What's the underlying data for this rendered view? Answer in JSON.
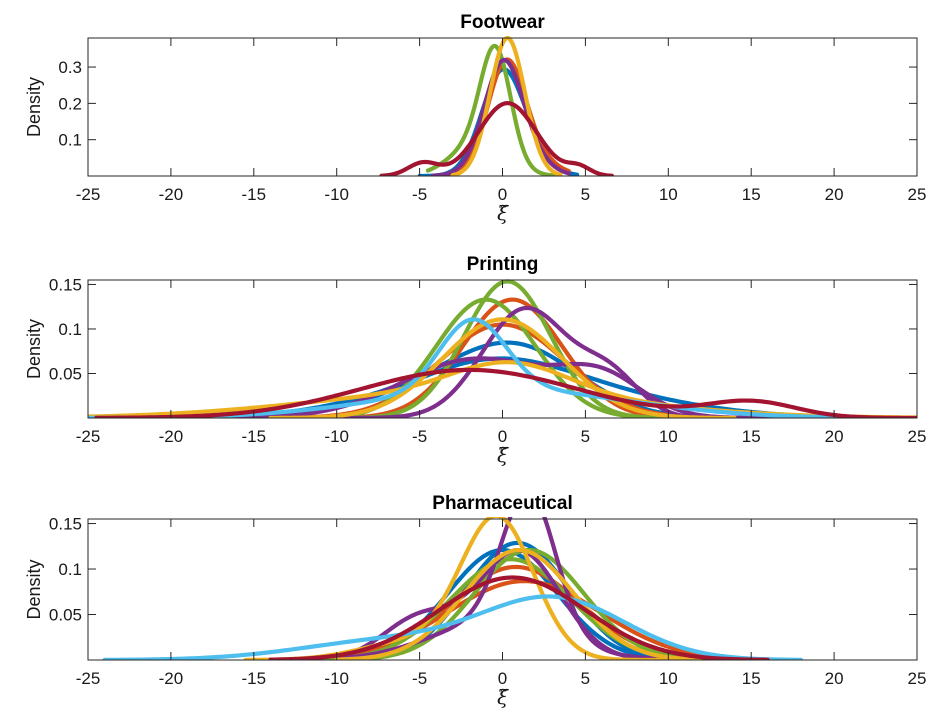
{
  "chart_data": [
    {
      "type": "line",
      "title": "Footwear",
      "xlabel": "ξ̃",
      "ylabel": "Density",
      "xlim": [
        -25,
        25
      ],
      "ylim": [
        0,
        0.38
      ],
      "xticks": [
        "-25",
        "-20",
        "-15",
        "-10",
        "-5",
        "0",
        "5",
        "10",
        "15",
        "20",
        "25"
      ],
      "yticks": [
        {
          "v": 0.1,
          "label": "0.1"
        },
        {
          "v": 0.2,
          "label": "0.2"
        },
        {
          "v": 0.3,
          "label": "0.3"
        }
      ],
      "series": [
        {
          "color": "#0072BD",
          "comps": [
            [
              0.6,
              -0.2,
              1.2
            ],
            [
              0.4,
              0.8,
              1.4
            ]
          ],
          "range": [
            -5,
            4.5
          ]
        },
        {
          "color": "#D95319",
          "comps": [
            [
              0.7,
              0.2,
              1.1
            ],
            [
              0.3,
              1.0,
              1.6
            ]
          ],
          "range": [
            -4,
            4
          ]
        },
        {
          "color": "#77AC30",
          "comps": [
            [
              0.65,
              -0.4,
              0.9
            ],
            [
              0.35,
              -1.5,
              1.6
            ]
          ],
          "range": [
            -4.5,
            3.5
          ]
        },
        {
          "color": "#7E2F8E",
          "comps": [
            [
              0.6,
              0.0,
              1.1
            ],
            [
              0.4,
              0.5,
              1.5
            ]
          ],
          "range": [
            -4.2,
            4
          ]
        },
        {
          "color": "#EDB120",
          "comps": [
            [
              1.0,
              0.3,
              1.05
            ]
          ],
          "range": [
            -3,
            3.5
          ]
        },
        {
          "color": "#A2142F",
          "comps": [
            [
              0.88,
              0.3,
              1.75
            ],
            [
              0.08,
              -4.8,
              0.9
            ],
            [
              0.04,
              4.6,
              0.7
            ]
          ],
          "range": [
            -7.3,
            6.6
          ]
        }
      ]
    },
    {
      "type": "line",
      "title": "Printing",
      "xlabel": "ξ̃",
      "ylabel": "Density",
      "xlim": [
        -25,
        25
      ],
      "ylim": [
        0,
        0.155
      ],
      "xticks": [
        "-25",
        "-20",
        "-15",
        "-10",
        "-5",
        "0",
        "5",
        "10",
        "15",
        "20",
        "25"
      ],
      "yticks": [
        {
          "v": 0.05,
          "label": "0.05"
        },
        {
          "v": 0.1,
          "label": "0.1"
        },
        {
          "v": 0.15,
          "label": "0.15"
        }
      ],
      "series": [
        {
          "color": "#0072BD",
          "comps": [
            [
              0.65,
              1.0,
              3.8
            ],
            [
              0.35,
              -4.5,
              5.0
            ]
          ],
          "range": [
            -20,
            22
          ]
        },
        {
          "color": "#0072BD",
          "comps": [
            [
              0.7,
              -1.0,
              5.0
            ],
            [
              0.3,
              6.0,
              6.0
            ]
          ],
          "range": [
            -21,
            24
          ]
        },
        {
          "color": "#D95319",
          "comps": [
            [
              1.0,
              0.6,
              3.0
            ]
          ],
          "range": [
            -15,
            13
          ]
        },
        {
          "color": "#D95319",
          "comps": [
            [
              1.0,
              0.0,
              3.8
            ]
          ],
          "range": [
            -15,
            14
          ]
        },
        {
          "color": "#77AC30",
          "comps": [
            [
              1.0,
              0.3,
              2.6
            ]
          ],
          "range": [
            -13,
            13
          ]
        },
        {
          "color": "#77AC30",
          "comps": [
            [
              1.0,
              -1.0,
              3.0
            ]
          ],
          "range": [
            -13,
            13
          ]
        },
        {
          "color": "#7E2F8E",
          "comps": [
            [
              0.8,
              1.4,
              2.6
            ],
            [
              0.2,
              6.5,
              1.8
            ]
          ],
          "range": [
            -13,
            14
          ]
        },
        {
          "color": "#7E2F8E",
          "comps": [
            [
              0.75,
              -1.5,
              4.5
            ],
            [
              0.25,
              6.0,
              2.5
            ]
          ],
          "range": [
            -16,
            16
          ]
        },
        {
          "color": "#EDB120",
          "comps": [
            [
              0.3,
              0.5,
              3.5
            ],
            [
              0.7,
              -2.0,
              9.5
            ]
          ],
          "range": [
            -25,
            25
          ]
        },
        {
          "color": "#EDB120",
          "comps": [
            [
              1.0,
              0.0,
              3.6
            ]
          ],
          "range": [
            -14,
            14
          ]
        },
        {
          "color": "#4DBEEE",
          "comps": [
            [
              0.4,
              -1.8,
              2.0
            ],
            [
              0.6,
              0.0,
              7.5
            ]
          ],
          "range": [
            -25,
            22
          ]
        },
        {
          "color": "#A2142F",
          "comps": [
            [
              0.88,
              -2.0,
              6.5
            ],
            [
              0.12,
              15.0,
              2.7
            ]
          ],
          "range": [
            -24.5,
            25
          ]
        }
      ]
    },
    {
      "type": "line",
      "title": "Pharmaceutical",
      "xlabel": "ξ̃",
      "ylabel": "Density",
      "xlim": [
        -25,
        25
      ],
      "ylim": [
        0,
        0.155
      ],
      "xticks": [
        "-25",
        "-20",
        "-15",
        "-10",
        "-5",
        "0",
        "5",
        "10",
        "15",
        "20",
        "25"
      ],
      "yticks": [
        {
          "v": 0.05,
          "label": "0.05"
        },
        {
          "v": 0.1,
          "label": "0.1"
        },
        {
          "v": 0.15,
          "label": "0.15"
        }
      ],
      "series": [
        {
          "color": "#0072BD",
          "comps": [
            [
              1.0,
              0.9,
              3.1
            ]
          ],
          "range": [
            -11,
            12
          ]
        },
        {
          "color": "#0072BD",
          "comps": [
            [
              1.0,
              0.0,
              3.3
            ]
          ],
          "range": [
            -12,
            12
          ]
        },
        {
          "color": "#D95319",
          "comps": [
            [
              1.0,
              1.3,
              4.6
            ]
          ],
          "range": [
            -13,
            15
          ]
        },
        {
          "color": "#D95319",
          "comps": [
            [
              1.0,
              0.8,
              3.9
            ]
          ],
          "range": [
            -12,
            14
          ]
        },
        {
          "color": "#77AC30",
          "comps": [
            [
              1.0,
              1.6,
              3.3
            ]
          ],
          "range": [
            -11,
            13
          ]
        },
        {
          "color": "#77AC30",
          "comps": [
            [
              1.0,
              0.5,
              3.6
            ]
          ],
          "range": [
            -12,
            13
          ]
        },
        {
          "color": "#7E2F8E",
          "comps": [
            [
              0.6,
              1.6,
              1.6
            ],
            [
              0.4,
              -0.5,
              3.8
            ]
          ],
          "range": [
            -10,
            10
          ]
        },
        {
          "color": "#7E2F8E",
          "comps": [
            [
              0.75,
              1.0,
              2.5
            ],
            [
              0.25,
              -5.0,
              2.2
            ]
          ],
          "range": [
            -10,
            10
          ]
        },
        {
          "color": "#EDB120",
          "comps": [
            [
              0.85,
              -0.3,
              2.2
            ],
            [
              0.15,
              -5.5,
              3.0
            ]
          ],
          "range": [
            -15.5,
            10
          ]
        },
        {
          "color": "#EDB120",
          "comps": [
            [
              1.0,
              1.0,
              3.3
            ]
          ],
          "range": [
            -10,
            12
          ]
        },
        {
          "color": "#4DBEEE",
          "comps": [
            [
              0.7,
              3.2,
              4.3
            ],
            [
              0.3,
              -6.5,
              5.5
            ]
          ],
          "range": [
            -24,
            18
          ]
        },
        {
          "color": "#A2142F",
          "comps": [
            [
              1.0,
              0.6,
              4.4
            ]
          ],
          "range": [
            -14,
            16
          ]
        }
      ]
    }
  ]
}
